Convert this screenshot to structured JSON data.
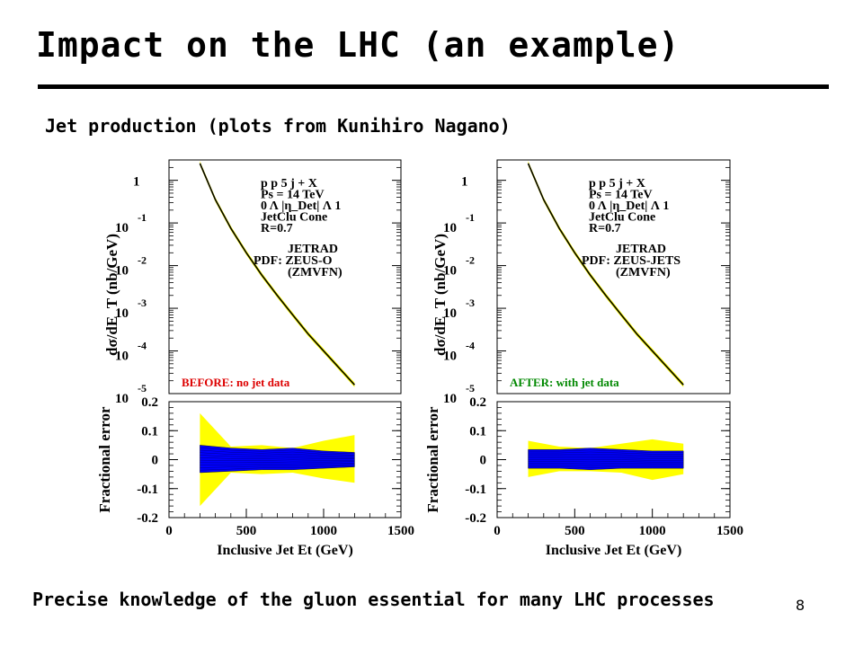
{
  "slide": {
    "title": "Impact on the LHC (an example)",
    "subtitle": "Jet production (plots from Kunihiro Nagano)",
    "footer": "Precise knowledge of the gluon essential for many LHC processes",
    "page_number": "8"
  },
  "colors": {
    "band_outer": "#ffff00",
    "band_inner": "#0000ff",
    "before_label": "#dd0000",
    "after_label": "#008800"
  },
  "chart_data": [
    {
      "type": "line",
      "panel": "left-top",
      "ylabel": "dσ/dE_T (nb/GeV)",
      "ylog": true,
      "ylim": [
        1e-05,
        3
      ],
      "xlim": [
        0,
        1500
      ],
      "y_ticks": [
        {
          "value": 1,
          "base": "1",
          "exp": ""
        },
        {
          "value": 0.1,
          "base": "10",
          "exp": "-1"
        },
        {
          "value": 0.01,
          "base": "10",
          "exp": "-2"
        },
        {
          "value": 0.001,
          "base": "10",
          "exp": "-3"
        },
        {
          "value": 0.0001,
          "base": "10",
          "exp": "-4"
        },
        {
          "value": 1e-05,
          "base": "10",
          "exp": "-5"
        }
      ],
      "annotation_lines": [
        "p p 5 j + X",
        "Ps = 14 TeV",
        "0 Λ |η_Det| Λ 1",
        "JetClu Cone",
        "R=0.7"
      ],
      "model_lines": [
        "JETRAD",
        "PDF: ZEUS-O",
        "(ZMVFN)"
      ],
      "label": "BEFORE: no jet data",
      "x": [
        200,
        300,
        400,
        500,
        600,
        700,
        800,
        900,
        1000,
        1100,
        1200
      ],
      "y": [
        2.5,
        0.35,
        0.075,
        0.02,
        0.006,
        0.002,
        0.0007,
        0.00025,
        0.0001,
        4e-05,
        1.6e-05
      ]
    },
    {
      "type": "area",
      "panel": "left-bottom",
      "xlabel": "Inclusive Jet Et (GeV)",
      "ylabel": "Fractional error",
      "ylim": [
        -0.2,
        0.2
      ],
      "xlim": [
        0,
        1500
      ],
      "x_ticks": [
        0,
        500,
        1000,
        1500
      ],
      "y_ticks": [
        0.2,
        0.1,
        0,
        -0.1,
        -0.2
      ],
      "series": [
        {
          "x": [
            200,
            400,
            600,
            800,
            1000,
            1200
          ],
          "upper": [
            0.16,
            0.045,
            0.05,
            0.04,
            0.065,
            0.085
          ],
          "lower": [
            -0.16,
            -0.045,
            -0.05,
            -0.045,
            -0.065,
            -0.08
          ]
        },
        {
          "x": [
            200,
            400,
            600,
            800,
            1000,
            1200
          ],
          "upper": [
            0.05,
            0.04,
            0.035,
            0.04,
            0.03,
            0.025
          ],
          "lower": [
            -0.045,
            -0.04,
            -0.035,
            -0.035,
            -0.03,
            -0.025
          ]
        }
      ]
    },
    {
      "type": "line",
      "panel": "right-top",
      "ylabel": "dσ/dE_T (nb/GeV)",
      "ylog": true,
      "ylim": [
        1e-05,
        3
      ],
      "xlim": [
        0,
        1500
      ],
      "y_ticks": [
        {
          "value": 1,
          "base": "1",
          "exp": ""
        },
        {
          "value": 0.1,
          "base": "10",
          "exp": "-1"
        },
        {
          "value": 0.01,
          "base": "10",
          "exp": "-2"
        },
        {
          "value": 0.001,
          "base": "10",
          "exp": "-3"
        },
        {
          "value": 0.0001,
          "base": "10",
          "exp": "-4"
        },
        {
          "value": 1e-05,
          "base": "10",
          "exp": "-5"
        }
      ],
      "annotation_lines": [
        "p p 5 j + X",
        "Ps = 14 TeV",
        "0 Λ |η_Det| Λ 1",
        "JetClu Cone",
        "R=0.7"
      ],
      "model_lines": [
        "JETRAD",
        "PDF: ZEUS-JETS",
        "(ZMVFN)"
      ],
      "label": "AFTER: with jet data",
      "x": [
        200,
        300,
        400,
        500,
        600,
        700,
        800,
        900,
        1000,
        1100,
        1200
      ],
      "y": [
        2.5,
        0.35,
        0.075,
        0.02,
        0.006,
        0.002,
        0.0007,
        0.00025,
        0.0001,
        4e-05,
        1.6e-05
      ]
    },
    {
      "type": "area",
      "panel": "right-bottom",
      "xlabel": "Inclusive Jet Et (GeV)",
      "ylabel": "Fractional error",
      "ylim": [
        -0.2,
        0.2
      ],
      "xlim": [
        0,
        1500
      ],
      "x_ticks": [
        0,
        500,
        1000,
        1500
      ],
      "y_ticks": [
        0.2,
        0.1,
        0,
        -0.1,
        -0.2
      ],
      "series": [
        {
          "x": [
            200,
            400,
            600,
            800,
            1000,
            1200
          ],
          "upper": [
            0.065,
            0.045,
            0.04,
            0.055,
            0.07,
            0.055
          ],
          "lower": [
            -0.06,
            -0.04,
            -0.04,
            -0.045,
            -0.07,
            -0.05
          ]
        },
        {
          "x": [
            200,
            400,
            600,
            800,
            1000,
            1200
          ],
          "upper": [
            0.035,
            0.035,
            0.04,
            0.035,
            0.03,
            0.03
          ],
          "lower": [
            -0.03,
            -0.03,
            -0.035,
            -0.03,
            -0.03,
            -0.03
          ]
        }
      ]
    }
  ]
}
